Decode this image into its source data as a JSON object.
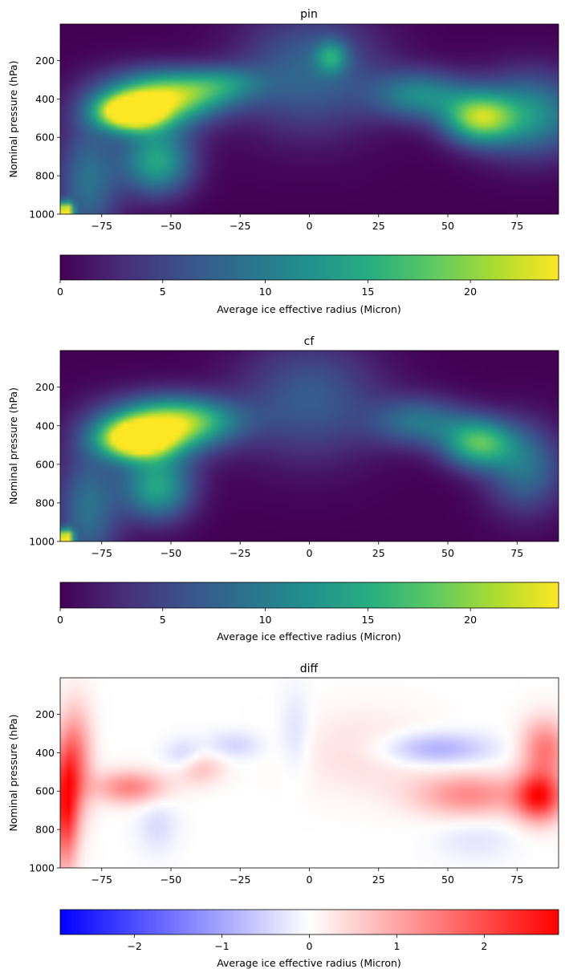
{
  "chart_data": [
    {
      "type": "heatmap",
      "title": "pin",
      "xlabel": "",
      "ylabel": "Nominal pressure (hPa)",
      "xlim": [
        -90,
        90
      ],
      "ylim": [
        1000,
        10
      ],
      "y_inverted": true,
      "xticks": [
        -75,
        -50,
        -25,
        0,
        25,
        50,
        75
      ],
      "yticks": [
        200,
        400,
        600,
        800,
        1000
      ],
      "colormap": "viridis",
      "colorbar": {
        "label": "Average ice effective radius (Micron)",
        "range": [
          0,
          24.3
        ],
        "ticks": [
          0,
          5,
          10,
          15,
          20
        ],
        "orientation": "horizontal",
        "placement": "bottom"
      },
      "features": [
        {
          "lat": -65,
          "p": 470,
          "value": 23,
          "dlat": 8,
          "dp": 60
        },
        {
          "lat": -58,
          "p": 420,
          "value": 16,
          "dlat": 14,
          "dp": 110
        },
        {
          "lat": -55,
          "p": 730,
          "value": 14,
          "dlat": 9,
          "dp": 120
        },
        {
          "lat": -44,
          "p": 370,
          "value": 11,
          "dlat": 14,
          "dp": 80
        },
        {
          "lat": -30,
          "p": 310,
          "value": 6,
          "dlat": 10,
          "dp": 60
        },
        {
          "lat": 0,
          "p": 260,
          "value": 8,
          "dlat": 18,
          "dp": 220
        },
        {
          "lat": 8,
          "p": 180,
          "value": 9,
          "dlat": 4,
          "dp": 60
        },
        {
          "lat": 40,
          "p": 380,
          "value": 11,
          "dlat": 12,
          "dp": 90
        },
        {
          "lat": 61,
          "p": 500,
          "value": 17,
          "dlat": 9,
          "dp": 90
        },
        {
          "lat": 80,
          "p": 480,
          "value": 12,
          "dlat": 14,
          "dp": 150
        },
        {
          "lat": -80,
          "p": 830,
          "value": 9,
          "dlat": 8,
          "dp": 220
        },
        {
          "lat": -88,
          "p": 980,
          "value": 24,
          "dlat": 1.8,
          "dp": 30
        }
      ]
    },
    {
      "type": "heatmap",
      "title": "cf",
      "xlabel": "",
      "ylabel": "Nominal pressure (hPa)",
      "xlim": [
        -90,
        90
      ],
      "ylim": [
        1000,
        10
      ],
      "y_inverted": true,
      "xticks": [
        -75,
        -50,
        -25,
        0,
        25,
        50,
        75
      ],
      "yticks": [
        200,
        400,
        600,
        800,
        1000
      ],
      "colormap": "viridis",
      "colorbar": {
        "label": "Average ice effective radius (Micron)",
        "range": [
          0,
          24.3
        ],
        "ticks": [
          0,
          5,
          10,
          15,
          20
        ],
        "orientation": "horizontal",
        "placement": "bottom"
      },
      "features": [
        {
          "lat": -63,
          "p": 470,
          "value": 22,
          "dlat": 9,
          "dp": 70
        },
        {
          "lat": -55,
          "p": 410,
          "value": 16,
          "dlat": 15,
          "dp": 110
        },
        {
          "lat": -55,
          "p": 720,
          "value": 14,
          "dlat": 9,
          "dp": 120
        },
        {
          "lat": -42,
          "p": 370,
          "value": 10,
          "dlat": 13,
          "dp": 80
        },
        {
          "lat": 0,
          "p": 260,
          "value": 7,
          "dlat": 18,
          "dp": 220
        },
        {
          "lat": 40,
          "p": 380,
          "value": 9,
          "dlat": 12,
          "dp": 90
        },
        {
          "lat": 61,
          "p": 490,
          "value": 16,
          "dlat": 9,
          "dp": 90
        },
        {
          "lat": 78,
          "p": 620,
          "value": 9,
          "dlat": 10,
          "dp": 160
        },
        {
          "lat": -80,
          "p": 830,
          "value": 9,
          "dlat": 8,
          "dp": 220
        },
        {
          "lat": -88,
          "p": 980,
          "value": 24,
          "dlat": 1.8,
          "dp": 30
        }
      ]
    },
    {
      "type": "heatmap",
      "title": "diff",
      "xlabel": "",
      "ylabel": "Nominal pressure (hPa)",
      "xlim": [
        -90,
        90
      ],
      "ylim": [
        1000,
        10
      ],
      "y_inverted": true,
      "xticks": [
        -75,
        -50,
        -25,
        0,
        25,
        50,
        75
      ],
      "yticks": [
        200,
        400,
        600,
        800,
        1000
      ],
      "colormap": "bwr",
      "colorbar": {
        "label": "Average ice effective radius (Micron)",
        "range": [
          -2.85,
          2.85
        ],
        "ticks": [
          -2,
          -1,
          0,
          1,
          2
        ],
        "orientation": "horizontal",
        "placement": "bottom"
      },
      "features": [
        {
          "lat": -88,
          "p": 680,
          "value": 2.4,
          "dlat": 3,
          "dp": 220
        },
        {
          "lat": -84,
          "p": 450,
          "value": 1.4,
          "dlat": 4,
          "dp": 200
        },
        {
          "lat": -65,
          "p": 580,
          "value": 1.4,
          "dlat": 9,
          "dp": 60
        },
        {
          "lat": -45,
          "p": 420,
          "value": -0.6,
          "dlat": 5,
          "dp": 60
        },
        {
          "lat": -40,
          "p": 480,
          "value": 0.8,
          "dlat": 6,
          "dp": 60
        },
        {
          "lat": -27,
          "p": 360,
          "value": -0.5,
          "dlat": 7,
          "dp": 50
        },
        {
          "lat": -5,
          "p": 300,
          "value": -0.4,
          "dlat": 4,
          "dp": 150
        },
        {
          "lat": -55,
          "p": 780,
          "value": -0.4,
          "dlat": 5,
          "dp": 100
        },
        {
          "lat": 45,
          "p": 380,
          "value": -1.0,
          "dlat": 14,
          "dp": 60
        },
        {
          "lat": 58,
          "p": 620,
          "value": 1.3,
          "dlat": 14,
          "dp": 80
        },
        {
          "lat": 83,
          "p": 630,
          "value": 2.5,
          "dlat": 6,
          "dp": 90
        },
        {
          "lat": 85,
          "p": 380,
          "value": 1.5,
          "dlat": 6,
          "dp": 110
        },
        {
          "lat": 60,
          "p": 850,
          "value": -0.3,
          "dlat": 10,
          "dp": 80
        },
        {
          "lat": 20,
          "p": 400,
          "value": 0.4,
          "dlat": 18,
          "dp": 150
        }
      ]
    }
  ]
}
